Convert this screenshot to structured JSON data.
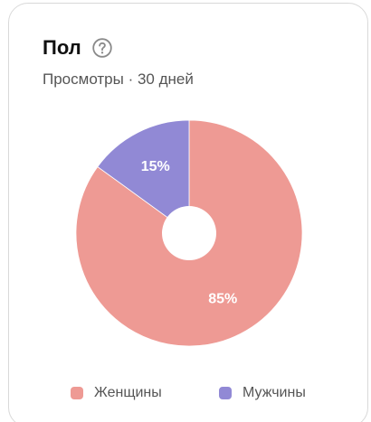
{
  "card": {
    "title": "Пол",
    "subtitle": "Просмотры · 30 дней",
    "help_icon": "question-circle-icon"
  },
  "chart_data": {
    "type": "pie",
    "style": "donut",
    "title": "Пол",
    "subtitle": "Просмотры · 30 дней",
    "categories": [
      "Женщины",
      "Мужчины"
    ],
    "values": [
      85,
      15
    ],
    "labels": [
      "85%",
      "15%"
    ],
    "colors": [
      "#ee9a94",
      "#9189d5"
    ],
    "legend_position": "bottom"
  },
  "legend": {
    "items": [
      {
        "label": "Женщины",
        "color": "#ee9a94"
      },
      {
        "label": "Мужчины",
        "color": "#9189d5"
      }
    ]
  }
}
